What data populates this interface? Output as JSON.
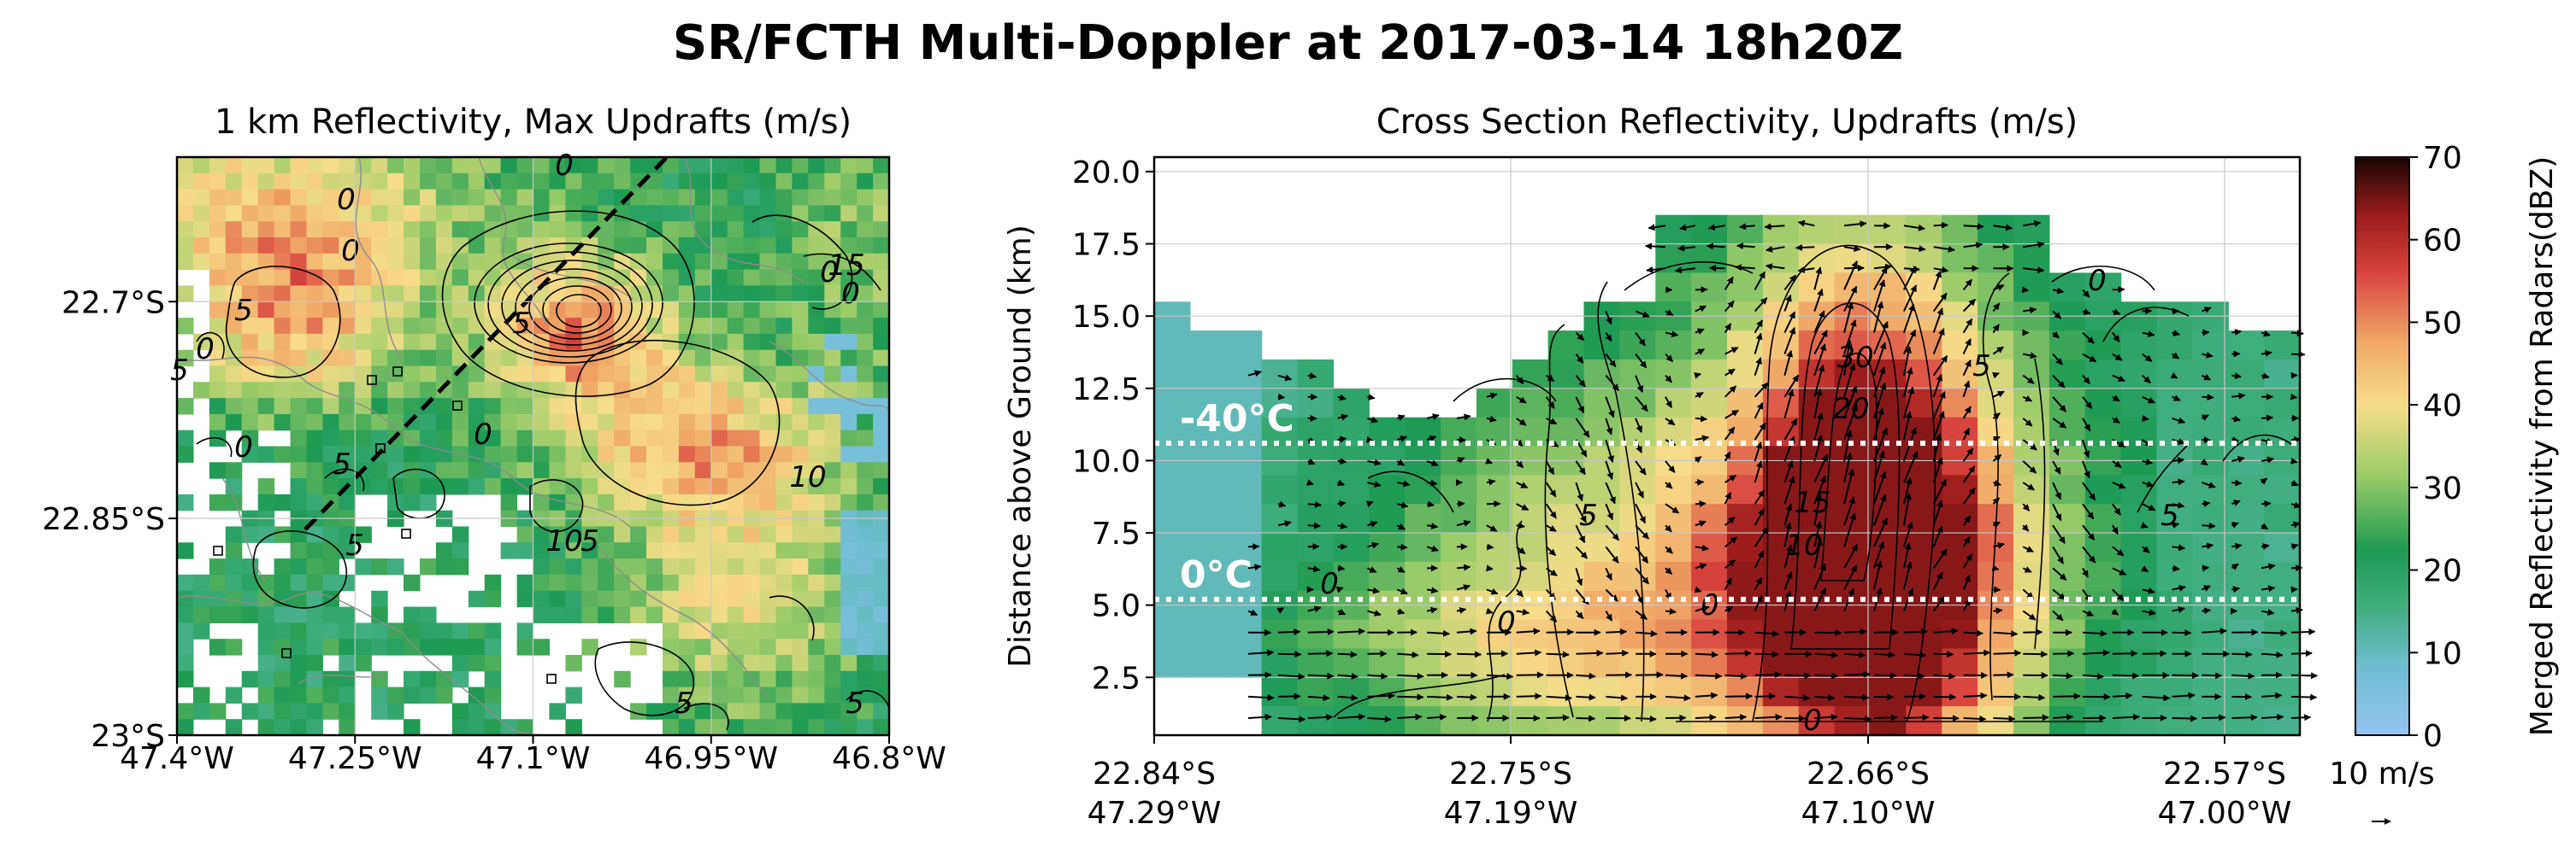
{
  "suptitle": "SR/FCTH Multi-Doppler at 2017-03-14 18h20Z",
  "chart_data": [
    {
      "type": "heatmap",
      "title": "1 km Reflectivity, Max Updrafts (m/s)",
      "x_ticks": [
        "47.4°W",
        "47.25°W",
        "47.1°W",
        "46.95°W",
        "46.8°W"
      ],
      "x_values": [
        -47.4,
        -47.25,
        -47.1,
        -46.95,
        -46.8
      ],
      "y_ticks": [
        "22.7°S",
        "22.85°S",
        "23°S"
      ],
      "y_values": [
        -22.7,
        -22.85,
        -23.0
      ],
      "xlim": [
        -47.4,
        -46.8
      ],
      "ylim": [
        -23.0,
        -22.6
      ],
      "field": "reflectivity",
      "contour_field": "max_updraft",
      "contour_labels": [
        "0",
        "0",
        "0",
        "0",
        "0",
        "0",
        "0",
        "0",
        "5",
        "5",
        "5",
        "5",
        "5",
        "5",
        "5",
        "5",
        "10",
        "10",
        "15"
      ],
      "cross_section_line": {
        "start": [
          -47.3,
          -22.85
        ],
        "end": [
          -47.0,
          -22.62
        ]
      },
      "grid": true
    },
    {
      "type": "heatmap",
      "title": "Cross Section Reflectivity, Updrafts (m/s)",
      "ylabel": "Distance above Ground (km)",
      "y_ticks": [
        "2.5",
        "5.0",
        "7.5",
        "10.0",
        "12.5",
        "15.0",
        "17.5",
        "20.0"
      ],
      "y_values": [
        2.5,
        5.0,
        7.5,
        10.0,
        12.5,
        15.0,
        17.5,
        20.0
      ],
      "ylim": [
        0.5,
        20.5
      ],
      "x_ticks_line1": [
        "22.84°S",
        "22.75°S",
        "22.66°S",
        "22.57°S"
      ],
      "x_ticks_line2": [
        "47.29°W",
        "47.19°W",
        "47.10°W",
        "47.00°W"
      ],
      "isotherms": [
        {
          "label": "-40°C",
          "height_km": 10.6
        },
        {
          "label": "0°C",
          "height_km": 5.2
        }
      ],
      "contour_labels": [
        "0",
        "0",
        "0",
        "0",
        "0",
        "5",
        "5",
        "5",
        "10",
        "15",
        "20",
        "30"
      ],
      "vectors": "wind (horizontal, vertical)",
      "grid": true
    }
  ],
  "colorbar": {
    "label": "Merged Reflectivity from Radars(dBZ)",
    "ticks": [
      "0",
      "10",
      "20",
      "30",
      "40",
      "50",
      "60",
      "70"
    ],
    "range": [
      0,
      70
    ],
    "colors": [
      "#93c4f2",
      "#52b79a",
      "#1d9a52",
      "#9ccc6a",
      "#f7dd8a",
      "#f0a868",
      "#d8443e",
      "#9a1b1b",
      "#1a0505"
    ]
  },
  "vector_key": {
    "label": "10 m/s",
    "value": 10
  }
}
